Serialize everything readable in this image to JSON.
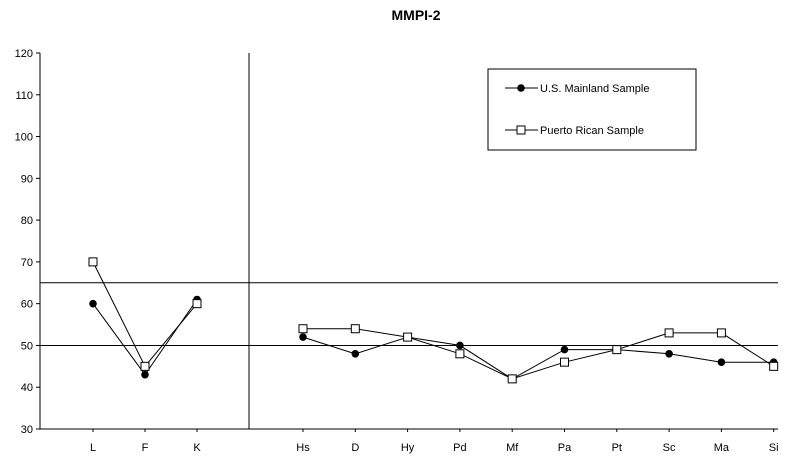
{
  "chart_data": {
    "type": "line",
    "title": "MMPI-2",
    "xlabel": "",
    "ylabel": "",
    "ylim": [
      30,
      120
    ],
    "yticks": [
      30,
      40,
      50,
      60,
      70,
      80,
      90,
      100,
      110,
      120
    ],
    "categories": [
      "L",
      "F",
      "K",
      "Hs",
      "D",
      "Hy",
      "Pd",
      "Mf",
      "Pa",
      "Pt",
      "Sc",
      "Ma",
      "Si"
    ],
    "groups": [
      {
        "categories": [
          "L",
          "F",
          "K"
        ]
      },
      {
        "categories": [
          "Hs",
          "D",
          "Hy",
          "Pd",
          "Mf",
          "Pa",
          "Pt",
          "Sc",
          "Ma",
          "Si"
        ]
      }
    ],
    "reference_lines": [
      65,
      50
    ],
    "series": [
      {
        "name": "U.S. Mainland Sample",
        "marker": "filled-circle",
        "color": "#000000",
        "values": [
          60,
          43,
          61,
          52,
          48,
          52,
          50,
          42,
          49,
          49,
          48,
          46,
          46
        ]
      },
      {
        "name": "Puerto Rican Sample",
        "marker": "open-square",
        "color": "#000000",
        "values": [
          70,
          45,
          60,
          54,
          54,
          52,
          48,
          42,
          46,
          49,
          53,
          53,
          45
        ]
      }
    ],
    "legend": {
      "position": "top-right"
    },
    "grid": false
  }
}
